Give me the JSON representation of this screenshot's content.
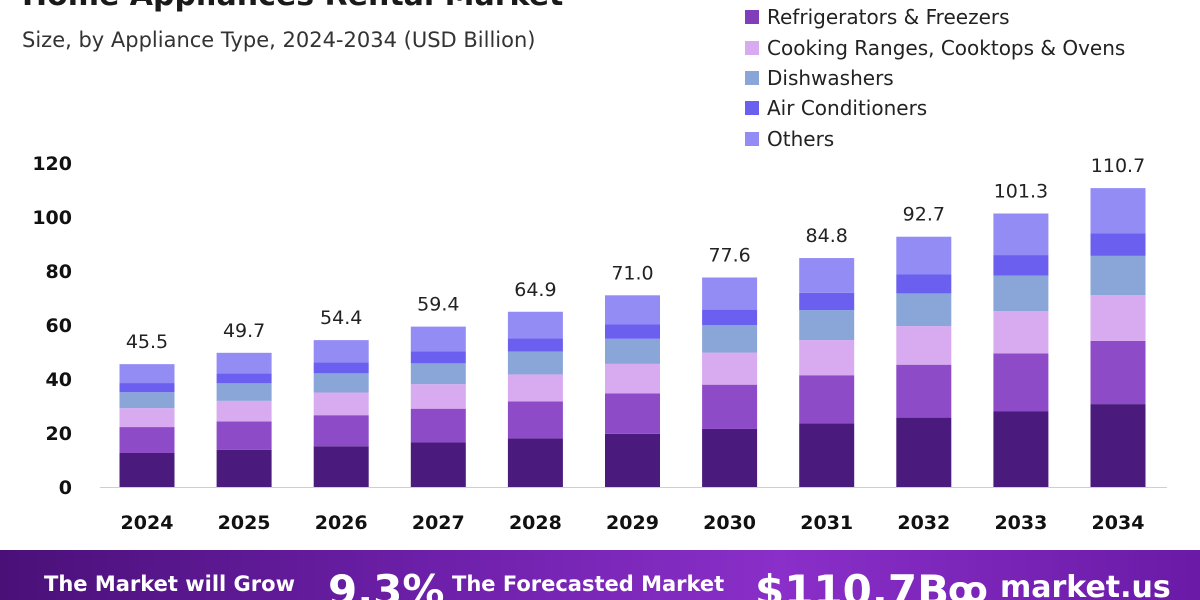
{
  "title": "Home Appliances Rental Market",
  "subtitle": "Size, by Appliance Type, 2024-2034 (USD Billion)",
  "footer": {
    "grow_label": "The Market will Grow",
    "rate": "9.3%",
    "forecast_label": "The Forecasted Market",
    "forecast_value": "$110.7B",
    "brand": "market.us"
  },
  "chart_data": {
    "type": "bar",
    "stacked": true,
    "categories": [
      "2024",
      "2025",
      "2026",
      "2027",
      "2028",
      "2029",
      "2030",
      "2031",
      "2032",
      "2033",
      "2034"
    ],
    "totals": [
      45.5,
      49.7,
      54.4,
      59.4,
      64.9,
      71.0,
      77.6,
      84.8,
      92.7,
      101.3,
      110.7
    ],
    "total_labels": [
      "45.5",
      "49.7",
      "54.4",
      "59.4",
      "64.9",
      "71.0",
      "77.6",
      "84.8",
      "92.7",
      "101.3",
      "110.7"
    ],
    "series": [
      {
        "name": "Refrigerators & Freezers",
        "color": "#4a1a7c",
        "values": [
          12.6,
          13.8,
          15.1,
          16.5,
          18.0,
          19.7,
          21.5,
          23.5,
          25.7,
          28.1,
          30.7
        ]
      },
      {
        "name": "",
        "color": "#8d4bc8",
        "values": [
          9.6,
          10.5,
          11.5,
          12.5,
          13.7,
          15.0,
          16.4,
          17.9,
          19.6,
          21.4,
          23.4
        ]
      },
      {
        "name": "Cooking Ranges, Cooktops & Ovens",
        "color": "#d8aaf0",
        "values": [
          7.0,
          7.6,
          8.4,
          9.1,
          10.0,
          10.9,
          11.9,
          13.0,
          14.3,
          15.6,
          17.0
        ]
      },
      {
        "name": "Dishwashers",
        "color": "#8aa6d8",
        "values": [
          5.9,
          6.5,
          7.1,
          7.7,
          8.5,
          9.3,
          10.1,
          11.1,
          12.1,
          13.2,
          14.5
        ]
      },
      {
        "name": "Air Conditioners",
        "color": "#6b5ff0",
        "values": [
          3.4,
          3.7,
          4.1,
          4.5,
          4.9,
          5.3,
          5.8,
          6.4,
          7.0,
          7.6,
          8.3
        ]
      },
      {
        "name": "Others",
        "color": "#938cf5",
        "values": [
          7.0,
          7.6,
          8.2,
          9.1,
          9.8,
          10.8,
          11.9,
          12.9,
          14.0,
          15.4,
          16.8
        ]
      }
    ],
    "y_ticks": [
      "0",
      "20",
      "40",
      "60",
      "80",
      "100",
      "120"
    ],
    "ylim": [
      0,
      120
    ],
    "xlabel": "",
    "ylabel": "",
    "grid": false,
    "legend_position": "top-right"
  }
}
